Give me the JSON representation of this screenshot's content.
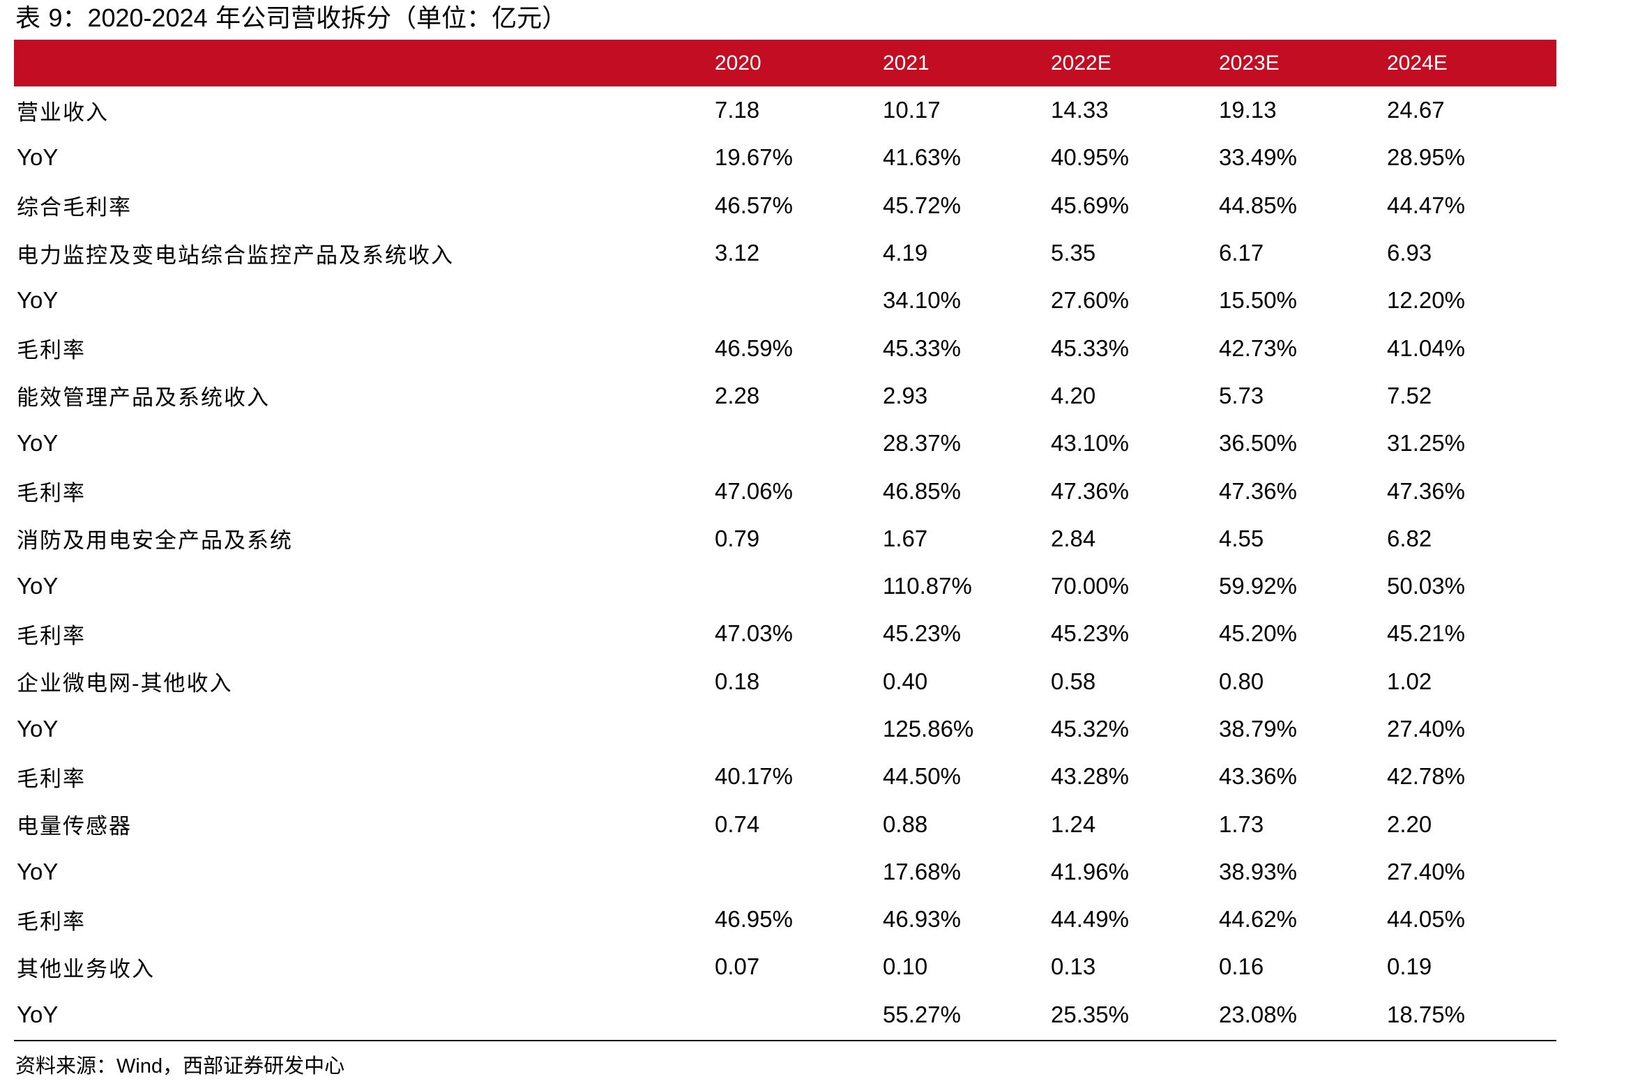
{
  "title_prefix": "表 ",
  "title_num": "9：2020-2024",
  "title_suffix": " 年公司营收拆分（单位：亿元）",
  "header": {
    "label": "",
    "years": [
      "2020",
      "2021",
      "2022E",
      "2023E",
      "2024E"
    ]
  },
  "rows": [
    {
      "label": "营业收入",
      "cn": true,
      "values": [
        "7.18",
        "10.17",
        "14.33",
        "19.13",
        "24.67"
      ]
    },
    {
      "label": "YoY",
      "cn": false,
      "values": [
        "19.67%",
        "41.63%",
        "40.95%",
        "33.49%",
        "28.95%"
      ]
    },
    {
      "label": "综合毛利率",
      "cn": true,
      "values": [
        "46.57%",
        "45.72%",
        "45.69%",
        "44.85%",
        "44.47%"
      ]
    },
    {
      "label": "电力监控及变电站综合监控产品及系统收入",
      "cn": true,
      "values": [
        "3.12",
        "4.19",
        "5.35",
        "6.17",
        "6.93"
      ]
    },
    {
      "label": "YoY",
      "cn": false,
      "values": [
        "",
        "34.10%",
        "27.60%",
        "15.50%",
        "12.20%"
      ]
    },
    {
      "label": "毛利率",
      "cn": true,
      "values": [
        "46.59%",
        "45.33%",
        "45.33%",
        "42.73%",
        "41.04%"
      ]
    },
    {
      "label": "能效管理产品及系统收入",
      "cn": true,
      "values": [
        "2.28",
        "2.93",
        "4.20",
        "5.73",
        "7.52"
      ]
    },
    {
      "label": "YoY",
      "cn": false,
      "values": [
        "",
        "28.37%",
        "43.10%",
        "36.50%",
        "31.25%"
      ]
    },
    {
      "label": "毛利率",
      "cn": true,
      "values": [
        "47.06%",
        "46.85%",
        "47.36%",
        "47.36%",
        "47.36%"
      ]
    },
    {
      "label": "消防及用电安全产品及系统",
      "cn": true,
      "values": [
        "0.79",
        "1.67",
        "2.84",
        "4.55",
        "6.82"
      ]
    },
    {
      "label": "YoY",
      "cn": false,
      "values": [
        "",
        "110.87%",
        "70.00%",
        "59.92%",
        "50.03%"
      ]
    },
    {
      "label": "毛利率",
      "cn": true,
      "values": [
        "47.03%",
        "45.23%",
        "45.23%",
        "45.20%",
        "45.21%"
      ]
    },
    {
      "label": "企业微电网-其他收入",
      "cn": true,
      "values": [
        "0.18",
        "0.40",
        "0.58",
        "0.80",
        "1.02"
      ]
    },
    {
      "label": "YoY",
      "cn": false,
      "values": [
        "",
        "125.86%",
        "45.32%",
        "38.79%",
        "27.40%"
      ]
    },
    {
      "label": "毛利率",
      "cn": true,
      "values": [
        "40.17%",
        "44.50%",
        "43.28%",
        "43.36%",
        "42.78%"
      ]
    },
    {
      "label": "电量传感器",
      "cn": true,
      "values": [
        "0.74",
        "0.88",
        "1.24",
        "1.73",
        "2.20"
      ]
    },
    {
      "label": "YoY",
      "cn": false,
      "values": [
        "",
        "17.68%",
        "41.96%",
        "38.93%",
        "27.40%"
      ]
    },
    {
      "label": "毛利率",
      "cn": true,
      "values": [
        "46.95%",
        "46.93%",
        "44.49%",
        "44.62%",
        "44.05%"
      ]
    },
    {
      "label": "其他业务收入",
      "cn": true,
      "values": [
        "0.07",
        "0.10",
        "0.13",
        "0.16",
        "0.19"
      ]
    },
    {
      "label": "YoY",
      "cn": false,
      "values": [
        "",
        "55.27%",
        "25.35%",
        "23.08%",
        "18.75%"
      ]
    }
  ],
  "source_prefix": "资料来源：",
  "source_latin": "Wind",
  "source_suffix": "，西部证券研发中心",
  "colors": {
    "header_bg": "#c30d23",
    "header_text": "#ffffff"
  }
}
